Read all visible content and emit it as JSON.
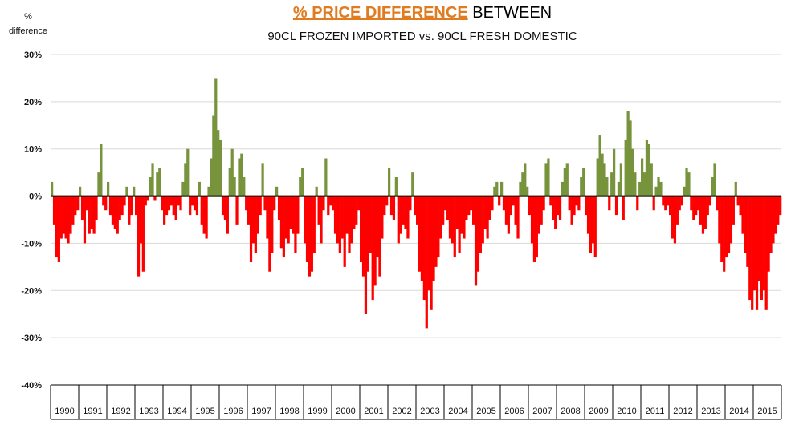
{
  "header": {
    "title_highlight": "% PRICE DIFFERENCE",
    "title_rest": " BETWEEN",
    "subtitle": "90CL FROZEN IMPORTED vs. 90CL FRESH DOMESTIC"
  },
  "axis": {
    "ylabel_line1": "%",
    "ylabel_line2": "difference"
  },
  "chart_data": {
    "type": "bar",
    "title": "% PRICE DIFFERENCE BETWEEN 90CL FROZEN IMPORTED vs. 90CL FRESH DOMESTIC",
    "ylabel": "% difference",
    "xlabel": "",
    "ylim": [
      -40,
      30
    ],
    "yticks": [
      30,
      20,
      10,
      0,
      -10,
      -20,
      -30,
      -40
    ],
    "ytick_labels": [
      "30%",
      "20%",
      "10%",
      "0%",
      "-10%",
      "-20%",
      "-30%",
      "-40%"
    ],
    "categories": [
      "1990",
      "1991",
      "1992",
      "1993",
      "1994",
      "1995",
      "1996",
      "1997",
      "1998",
      "1999",
      "2000",
      "2001",
      "2002",
      "2003",
      "2004",
      "2005",
      "2006",
      "2007",
      "2008",
      "2009",
      "2010",
      "2011",
      "2012",
      "2013",
      "2014",
      "2015"
    ],
    "grid": true,
    "positive_color": "#77933c",
    "negative_color": "#ff0000",
    "series": [
      {
        "values": [
          [
            3,
            -6,
            -13,
            -14,
            -9,
            -8,
            -9,
            -10,
            -8,
            -6,
            -4,
            -3
          ],
          [
            2,
            -5,
            -10,
            -3,
            -8,
            -7,
            -8,
            -5,
            5,
            11,
            -2,
            -3
          ],
          [
            3,
            -4,
            -6,
            -7,
            -8,
            -5,
            -4,
            -2,
            2,
            -6,
            -4,
            2
          ],
          [
            -4,
            -17,
            -10,
            -16,
            -2,
            -1,
            4,
            7,
            -1,
            5,
            6,
            -3
          ],
          [
            -6,
            -4,
            -3,
            -2,
            -4,
            -5,
            -2,
            -3,
            3,
            7,
            10,
            -4
          ],
          [
            -2,
            -3,
            -4,
            3,
            -6,
            -8,
            -9,
            2,
            8,
            17,
            25,
            14
          ],
          [
            12,
            -4,
            -5,
            -8,
            6,
            10,
            4,
            -6,
            8,
            9,
            4,
            -3
          ],
          [
            -6,
            -14,
            -10,
            -12,
            -8,
            -4,
            7,
            -3,
            -9,
            -16,
            -12,
            -3
          ],
          [
            2,
            -5,
            -11,
            -13,
            -9,
            -10,
            -7,
            -8,
            -12,
            -8,
            4,
            6
          ],
          [
            -10,
            -14,
            -17,
            -16,
            -12,
            2,
            -6,
            -10,
            -3,
            8,
            -4,
            -2
          ],
          [
            -3,
            -8,
            -10,
            -12,
            -9,
            -15,
            -8,
            -12,
            -10,
            -7,
            -6,
            -3
          ],
          [
            -14,
            -17,
            -25,
            -16,
            -12,
            -22,
            -19,
            -13,
            -17,
            -9,
            -4,
            -2
          ],
          [
            6,
            -4,
            -5,
            4,
            -10,
            -8,
            -6,
            -7,
            -9,
            -3,
            5,
            -4
          ],
          [
            -6,
            -16,
            -18,
            -22,
            -28,
            -20,
            -24,
            -18,
            -15,
            -13,
            -9,
            -6
          ],
          [
            -3,
            -5,
            -9,
            -10,
            -13,
            -7,
            -12,
            -8,
            -9,
            -5,
            -4,
            -3
          ],
          [
            -6,
            -19,
            -16,
            -12,
            -10,
            -7,
            -9,
            -5,
            -3,
            2,
            3,
            -2
          ],
          [
            3,
            -3,
            -6,
            -8,
            -4,
            -2,
            -6,
            -9,
            3,
            5,
            7,
            2
          ],
          [
            -4,
            -10,
            -14,
            -13,
            -8,
            -6,
            -3,
            7,
            8,
            -2,
            -5,
            -7
          ],
          [
            -4,
            -5,
            3,
            6,
            7,
            -3,
            -6,
            -4,
            -2,
            -3,
            4,
            6
          ],
          [
            -4,
            -8,
            -12,
            -10,
            -13,
            8,
            13,
            9,
            7,
            4,
            -3,
            5
          ],
          [
            10,
            -4,
            3,
            7,
            -5,
            12,
            18,
            16,
            10,
            5,
            -3,
            3
          ],
          [
            8,
            5,
            12,
            11,
            7,
            -3,
            2,
            4,
            3,
            -2,
            -3,
            -2
          ],
          [
            -4,
            -9,
            -10,
            -6,
            -3,
            -2,
            2,
            6,
            5,
            -3,
            -5,
            -4
          ],
          [
            -3,
            -6,
            -8,
            -7,
            -4,
            -2,
            4,
            7,
            -3,
            -10,
            -14,
            -16
          ],
          [
            -13,
            -12,
            -10,
            -6,
            3,
            -2,
            -4,
            -8,
            -12,
            -15,
            -22,
            -24
          ],
          [
            -20,
            -24,
            -18,
            -22,
            -20,
            -24,
            -16,
            -12,
            -10,
            -8,
            -6,
            -4
          ]
        ]
      }
    ]
  }
}
